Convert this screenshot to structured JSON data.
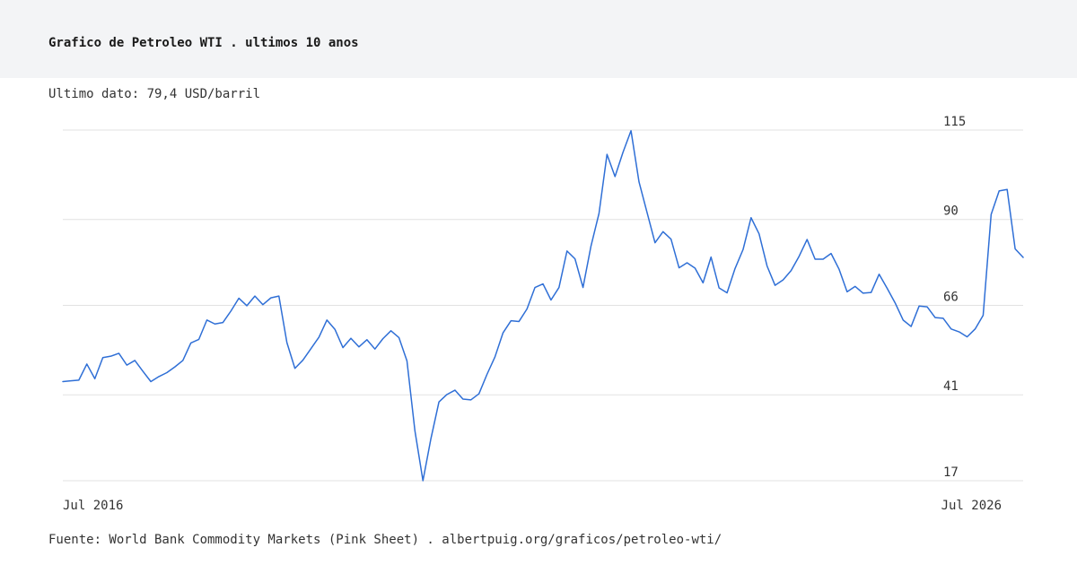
{
  "header": {
    "title": "Grafico de Petroleo WTI . ultimos 10 anos"
  },
  "subtitle": "Ultimo dato: 79,4 USD/barril",
  "footer": "Fuente: World Bank Commodity Markets (Pink Sheet) . albertpuig.org/graficos/petroleo-wti/",
  "colors": {
    "line": "#2f6fd6",
    "grid": "#e2e2e2",
    "header_bg": "#f3f4f6"
  },
  "chart_data": {
    "type": "line",
    "title": "",
    "xlabel": "",
    "ylabel": "",
    "x_tick_labels": [
      "Jul 2016",
      "Jul 2026"
    ],
    "y_ticks": [
      115,
      90,
      66,
      41,
      17
    ],
    "ylim": [
      17,
      115
    ],
    "grid": "horizontal",
    "y_axis_side": "right",
    "series": [
      {
        "name": "",
        "values": [
          44.7,
          44.9,
          45.1,
          49.6,
          45.5,
          51.4,
          51.8,
          52.6,
          49.3,
          50.6,
          47.6,
          44.7,
          46.1,
          47.2,
          48.8,
          50.6,
          55.5,
          56.5,
          61.9,
          60.8,
          61.2,
          64.4,
          68.0,
          65.9,
          68.6,
          66.2,
          68.1,
          68.6,
          55.6,
          48.4,
          50.7,
          53.9,
          57.1,
          61.9,
          59.3,
          54.2,
          56.8,
          54.4,
          56.4,
          53.8,
          56.7,
          58.9,
          57.0,
          50.5,
          30.9,
          17.0,
          28.8,
          39.0,
          41.1,
          42.3,
          39.8,
          39.6,
          41.3,
          46.7,
          51.6,
          58.3,
          61.7,
          61.5,
          65.0,
          71.0,
          72.0,
          67.5,
          71.0,
          81.2,
          79.0,
          71.0,
          82.6,
          91.7,
          108.2,
          102.0,
          108.8,
          114.8,
          100.5,
          92.0,
          83.5,
          86.6,
          84.5,
          76.5,
          77.9,
          76.4,
          72.3,
          79.5,
          70.9,
          69.5,
          76.3,
          81.6,
          90.5,
          86.0,
          77.0,
          71.6,
          73.1,
          75.7,
          79.7,
          84.4,
          78.9,
          78.9,
          80.5,
          76.1,
          69.8,
          71.3,
          69.4,
          69.6,
          74.7,
          70.8,
          66.7,
          61.9,
          60.1,
          65.8,
          65.6,
          62.6,
          62.4,
          59.4,
          58.6,
          57.2,
          59.4,
          63.2,
          91.4,
          98.0,
          98.4,
          81.8,
          79.4
        ]
      }
    ]
  }
}
